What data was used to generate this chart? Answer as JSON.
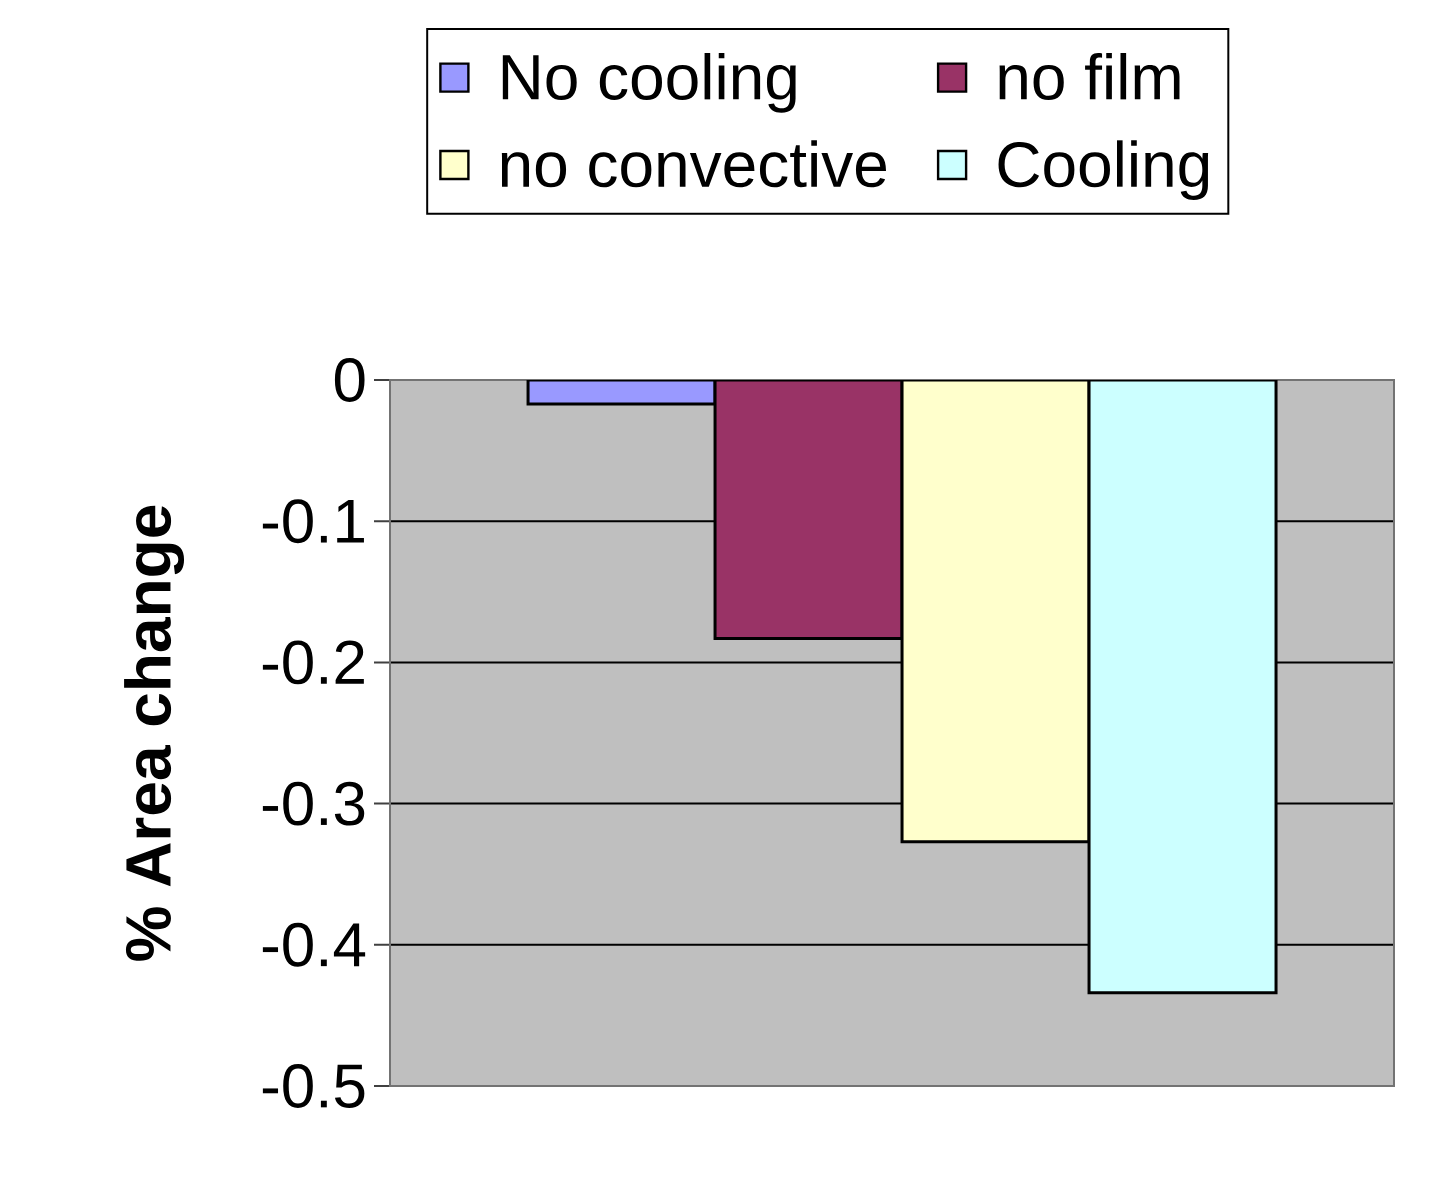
{
  "chart_data": {
    "type": "bar",
    "ylabel": "% Area change",
    "categories": [
      null
    ],
    "series": [
      {
        "name": "No cooling",
        "color": "#9999ff",
        "values": [
          -0.017
        ]
      },
      {
        "name": "no film",
        "color": "#993366",
        "values": [
          -0.183
        ]
      },
      {
        "name": "no convective",
        "color": "#ffffcc",
        "values": [
          -0.327
        ]
      },
      {
        "name": "Cooling",
        "color": "#ccffff",
        "values": [
          -0.434
        ]
      }
    ],
    "ylim": [
      -0.5,
      0
    ],
    "yticks": [
      -0.5,
      -0.4,
      -0.3,
      -0.2,
      -0.1,
      0
    ],
    "grid": "y",
    "legend": "top"
  }
}
